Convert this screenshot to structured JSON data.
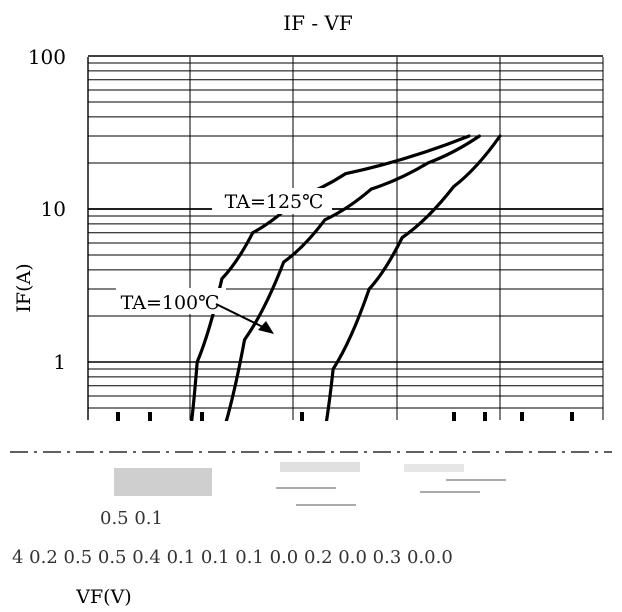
{
  "chart_data": {
    "type": "line",
    "title": "IF - VF",
    "xlabel": "VF(V)",
    "ylabel": "IF(A)",
    "y_scale": "log",
    "ylim": [
      0.3,
      100
    ],
    "y_ticks": [
      "100",
      "10",
      "1"
    ],
    "grid": true,
    "series": [
      {
        "name": "TA=125℃",
        "points": [
          [
            0.98,
            0.3
          ],
          [
            1.06,
            1
          ],
          [
            1.3,
            3.5
          ],
          [
            1.6,
            7
          ],
          [
            2.05,
            12
          ],
          [
            2.5,
            17
          ],
          [
            3.7,
            30
          ]
        ]
      },
      {
        "name": "TA=100℃",
        "points": [
          [
            1.28,
            0.3
          ],
          [
            1.52,
            1.4
          ],
          [
            1.9,
            4.5
          ],
          [
            2.3,
            8.5
          ],
          [
            2.75,
            13.5
          ],
          [
            3.3,
            20
          ],
          [
            3.8,
            30
          ]
        ]
      },
      {
        "name": "",
        "points": [
          [
            2.28,
            0.3
          ],
          [
            2.38,
            0.9
          ],
          [
            2.73,
            3
          ],
          [
            3.05,
            6.5
          ],
          [
            3.55,
            14
          ],
          [
            4.0,
            30
          ]
        ]
      }
    ],
    "annotations": [
      "TA=125℃",
      "TA=100℃"
    ],
    "x_tick_row": "4 0.2 0.5 0.5 0.4 0.1 0.1 0.1 0.0 0.2 0.0 0.3 0.0.0",
    "legend_fragment": "0.5 0.1"
  }
}
